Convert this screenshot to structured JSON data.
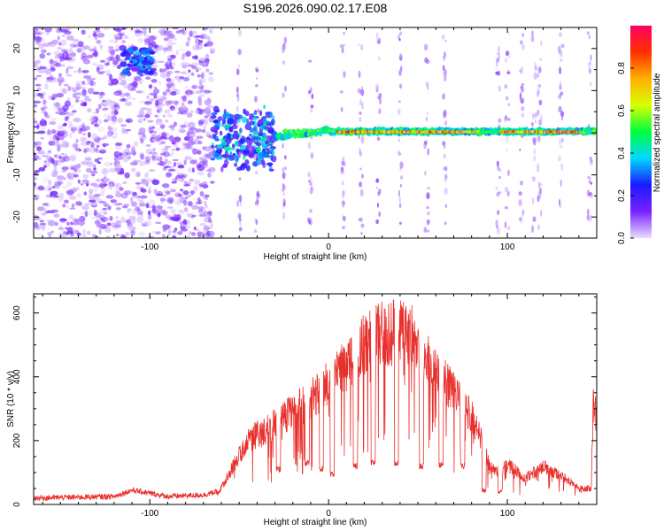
{
  "figure_title": "S196.2026.090.02.17.E08",
  "chart_data": [
    {
      "type": "heatmap",
      "title": "S196.2026.090.02.17.E08",
      "xlabel": "Height of straight line (km)",
      "ylabel": "Frequency (Hz)",
      "xlim": [
        -165,
        150
      ],
      "ylim": [
        -25,
        25
      ],
      "x_ticks": [
        -100,
        0,
        100
      ],
      "y_ticks": [
        -20,
        -10,
        0,
        10,
        20
      ],
      "colorbar": {
        "label": "Normalized spectral amplitude",
        "range": [
          0,
          1
        ],
        "ticks": [
          0.0,
          0.2,
          0.4,
          0.6,
          0.8
        ],
        "tick_labels": [
          "0.0",
          "0.2",
          "0.4",
          "0.6",
          "0.8"
        ],
        "colormap_stops": [
          "#e8ddff",
          "#7a22ff",
          "#1a1aff",
          "#00d8ff",
          "#00ff40",
          "#d8ff00",
          "#ffb000",
          "#ff3000",
          "#ff0060"
        ]
      },
      "description_regions": [
        {
          "x_range": [
            -165,
            -65
          ],
          "freq_range": [
            -25,
            25
          ],
          "amplitude": [
            0.0,
            0.15
          ],
          "note": "diffuse noise"
        },
        {
          "x_range": [
            -115,
            -98
          ],
          "freq_range": [
            14,
            20
          ],
          "amplitude": [
            0.1,
            0.4
          ],
          "note": "bright blob"
        },
        {
          "x_range": [
            -65,
            -30
          ],
          "freq_range": [
            -12,
            4
          ],
          "amplitude": [
            0.1,
            0.45
          ],
          "note": "scattered signal"
        },
        {
          "x_range": [
            -30,
            150
          ],
          "freq_range": [
            -1,
            2
          ],
          "amplitude": [
            0.3,
            0.95
          ],
          "note": "strong carrier near 0 Hz"
        }
      ]
    },
    {
      "type": "line",
      "xlabel": "Height of straight line (km)",
      "ylabel": "SNR (10 * v/v)",
      "xlim": [
        -165,
        150
      ],
      "ylim": [
        0,
        660
      ],
      "x_ticks": [
        -100,
        0,
        100
      ],
      "y_ticks": [
        0,
        200,
        400,
        600
      ],
      "color": "#e8302c",
      "envelope": {
        "x": [
          -165,
          -120,
          -110,
          -90,
          -70,
          -62,
          -55,
          -45,
          -35,
          -25,
          -15,
          -5,
          0,
          10,
          20,
          30,
          40,
          45,
          50,
          60,
          70,
          80,
          85,
          90,
          95,
          100,
          110,
          120,
          130,
          140,
          147,
          148,
          150
        ],
        "y": [
          20,
          25,
          45,
          25,
          30,
          40,
          120,
          250,
          280,
          330,
          370,
          420,
          470,
          520,
          600,
          640,
          650,
          640,
          600,
          500,
          420,
          330,
          250,
          140,
          120,
          150,
          100,
          140,
          110,
          60,
          60,
          380,
          320
        ]
      },
      "dips": [
        {
          "x": -28,
          "y": 100
        },
        {
          "x": -12,
          "y": 120
        },
        {
          "x": -4,
          "y": 100
        },
        {
          "x": 2,
          "y": 85
        },
        {
          "x": 15,
          "y": 110
        },
        {
          "x": 25,
          "y": 120
        },
        {
          "x": 38,
          "y": 120
        },
        {
          "x": 52,
          "y": 110
        },
        {
          "x": 63,
          "y": 115
        },
        {
          "x": 75,
          "y": 110
        },
        {
          "x": 87,
          "y": 35
        },
        {
          "x": 96,
          "y": 30
        }
      ]
    }
  ]
}
